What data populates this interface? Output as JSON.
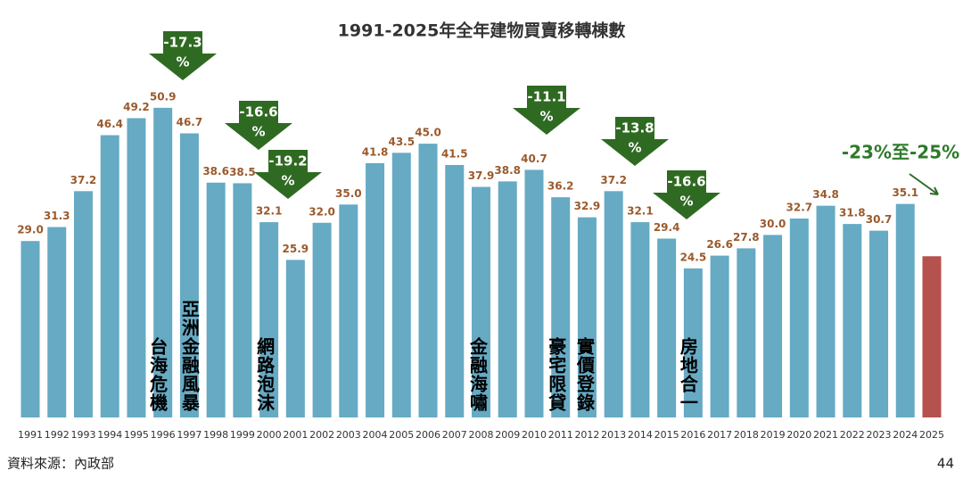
{
  "chart_data": {
    "type": "bar",
    "title": "1991-2025年全年建物買賣移轉棟數",
    "categories": [
      "1991",
      "1992",
      "1993",
      "1994",
      "1995",
      "1996",
      "1997",
      "1998",
      "1999",
      "2000",
      "2001",
      "2002",
      "2003",
      "2004",
      "2005",
      "2006",
      "2007",
      "2008",
      "2009",
      "2010",
      "2011",
      "2012",
      "2013",
      "2014",
      "2015",
      "2016",
      "2017",
      "2018",
      "2019",
      "2020",
      "2021",
      "2022",
      "2023",
      "2024",
      "2025"
    ],
    "values": [
      29.0,
      31.3,
      37.2,
      46.4,
      49.2,
      50.9,
      46.7,
      38.6,
      38.5,
      32.1,
      25.9,
      32.0,
      35.0,
      41.8,
      43.5,
      45.0,
      41.5,
      37.9,
      38.8,
      40.7,
      36.2,
      32.9,
      37.2,
      32.1,
      29.4,
      24.5,
      26.6,
      27.8,
      30.0,
      32.7,
      34.8,
      31.8,
      30.7,
      35.1,
      26.5
    ],
    "value_labels": [
      "29.0",
      "31.3",
      "37.2",
      "46.4",
      "49.2",
      "50.9",
      "46.7",
      "38.6",
      "38.5",
      "32.1",
      "25.9",
      "32.0",
      "35.0",
      "41.8",
      "43.5",
      "45.0",
      "41.5",
      "37.9",
      "38.8",
      "40.7",
      "36.2",
      "32.9",
      "37.2",
      "32.1",
      "29.4",
      "24.5",
      "26.6",
      "27.8",
      "30.0",
      "32.7",
      "34.8",
      "31.8",
      "30.7",
      "35.1",
      null
    ],
    "color": "#66aac4",
    "highlight_color": "#b5524d",
    "label_color": "#9a5a2c",
    "change_arrows": [
      {
        "lines": [
          "-17.3",
          "%"
        ]
      },
      {
        "lines": [
          "-16.6",
          "%"
        ]
      },
      {
        "lines": [
          "-19.2",
          "%"
        ]
      },
      {
        "lines": [
          "-11.1",
          "%"
        ]
      },
      {
        "lines": [
          "-13.8",
          "%"
        ]
      },
      {
        "lines": [
          "-16.6",
          "%"
        ]
      }
    ],
    "events": [
      "台海危機",
      "亞洲金融風暴",
      "網路泡沫",
      "金融海嘯",
      "豪宅限貸",
      "實價登錄",
      "房地合一"
    ],
    "forecast_note": "-23%至-25%",
    "source": "資料來源：內政部",
    "page_number": "44"
  }
}
